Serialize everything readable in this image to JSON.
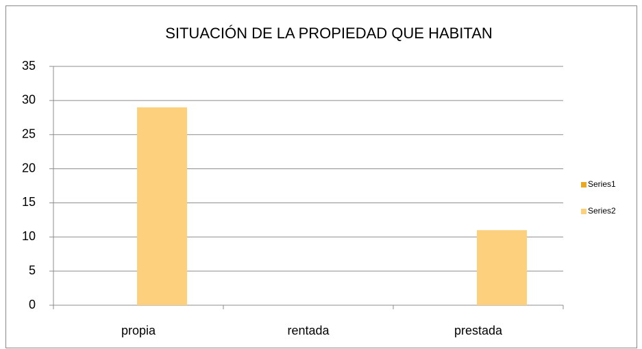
{
  "chart_data": {
    "type": "bar",
    "title": "SITUACIÓN DE LA PROPIEDAD QUE HABITAN",
    "categories": [
      "propia",
      "rentada",
      "prestada"
    ],
    "series": [
      {
        "name": "Series1",
        "color": "#e8a920",
        "values": [
          0,
          0,
          0
        ]
      },
      {
        "name": "Series2",
        "color": "#fcd07c",
        "values": [
          29,
          0,
          11
        ]
      }
    ],
    "ylim": [
      0,
      35
    ],
    "yticks": [
      0,
      5,
      10,
      15,
      20,
      25,
      30,
      35
    ],
    "grid": true,
    "legend": "right"
  }
}
